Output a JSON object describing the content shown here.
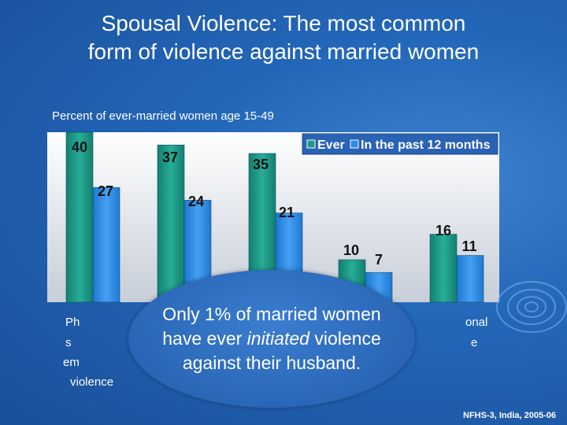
{
  "slide": {
    "title_line1": "Spousal Violence: The most common",
    "title_line2": "form of violence against married women",
    "subtitle": "Percent of ever-married women age 15-49",
    "callout": {
      "text_before": "Only 1% of married women have ever ",
      "text_emphasis": "initiated",
      "text_after": " violence against their husband."
    },
    "source": "NFHS-3, India, 2005-06"
  },
  "chart_data": {
    "type": "bar",
    "categories": [
      "Physical, sexual, or emotional violence",
      "",
      "",
      "",
      "Emotional violence"
    ],
    "visible_category_fragments": [
      [
        "Ph",
        "s",
        "em",
        "violence"
      ],
      [],
      [],
      [],
      [
        "onal",
        "e"
      ]
    ],
    "series": [
      {
        "name": "Ever",
        "values": [
          40,
          37,
          35,
          10,
          16
        ],
        "color": "#1e9a86"
      },
      {
        "name": "In the past 12 months",
        "values": [
          27,
          24,
          21,
          7,
          11
        ],
        "color": "#2f8be4"
      }
    ],
    "ylim": [
      0,
      45
    ],
    "legend_position": "top-right",
    "grid": false
  }
}
